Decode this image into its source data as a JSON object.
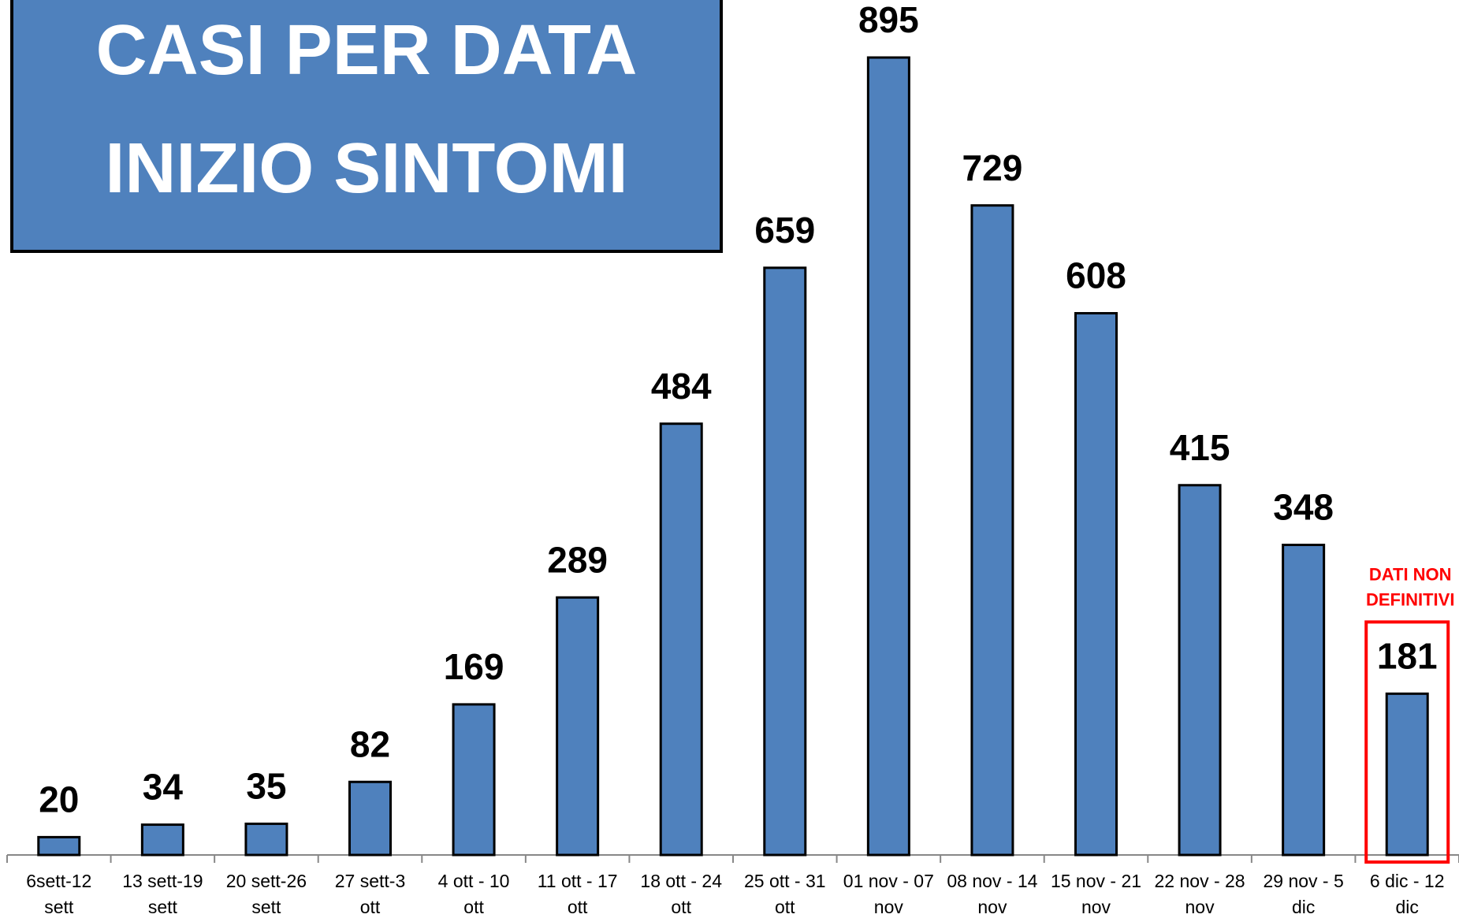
{
  "chart_data": {
    "type": "bar",
    "title": "CASI PER DATA\nINIZIO SINTOMI",
    "categories": [
      "6sett-12\nsett",
      "13 sett-19\nsett",
      "20 sett-26\nsett",
      "27 sett-3\nott",
      "4 ott - 10\nott",
      "11 ott - 17\nott",
      "18 ott - 24\nott",
      "25 ott - 31\nott",
      "01 nov - 07\nnov",
      "08 nov - 14\nnov",
      "15 nov - 21\nnov",
      "22 nov - 28\nnov",
      "29 nov - 5\ndic",
      "6 dic - 12\ndic"
    ],
    "values": [
      20,
      34,
      35,
      82,
      169,
      289,
      484,
      659,
      895,
      729,
      608,
      415,
      348,
      181
    ],
    "color": "#4f81bd",
    "annotation": "DATI NON\nDEFINITIVI",
    "annotation_color": "#ff0000"
  }
}
